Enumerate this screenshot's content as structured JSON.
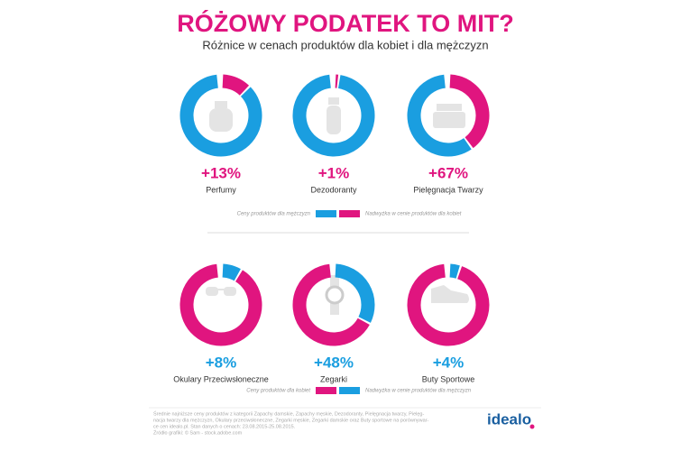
{
  "title": "RÓŻOWY PODATEK TO MIT?",
  "subtitle": "Różnice w cenach produktów dla kobiet i dla mężczyzn",
  "chart_data": [
    {
      "type": "donut",
      "category": "Perfumy",
      "values": [
        13
      ],
      "value_labels": [
        "+13%"
      ],
      "base_color": "#1a9ee0",
      "extra_color": "#e0157f"
    },
    {
      "type": "donut",
      "category": "Dezodoranty",
      "values": [
        1
      ],
      "value_labels": [
        "+1%"
      ],
      "base_color": "#1a9ee0",
      "extra_color": "#e0157f"
    },
    {
      "type": "donut",
      "category": "Pielęgnacja Twarzy",
      "values": [
        67
      ],
      "value_labels": [
        "+67%"
      ],
      "base_color": "#1a9ee0",
      "extra_color": "#e0157f"
    },
    {
      "type": "donut",
      "category": "Okulary Przeciwsłoneczne",
      "values": [
        8
      ],
      "value_labels": [
        "+8%"
      ],
      "base_color": "#e0157f",
      "extra_color": "#1a9ee0"
    },
    {
      "type": "donut",
      "category": "Zegarki",
      "values": [
        48
      ],
      "value_labels": [
        "+48%"
      ],
      "base_color": "#e0157f",
      "extra_color": "#1a9ee0"
    },
    {
      "type": "donut",
      "category": "Buty Sportowe",
      "values": [
        4
      ],
      "value_labels": [
        "+4%"
      ],
      "base_color": "#e0157f",
      "extra_color": "#1a9ee0"
    }
  ],
  "legends": [
    {
      "items": [
        {
          "name": "Ceny produktów dla mężczyzn",
          "color": "#1a9ee0"
        },
        {
          "name": "Nadwyżka w cenie produktów dla kobiet",
          "color": "#e0157f"
        }
      ]
    },
    {
      "items": [
        {
          "name": "Ceny produktów dla kobiet",
          "color": "#e0157f"
        },
        {
          "name": "Nadwyżka w cenie produktów dla mężczyzn",
          "color": "#1a9ee0"
        }
      ]
    }
  ],
  "footer": {
    "lines": [
      "Średnie najniższe ceny produktów z kategorii Zapachy damskie, Zapachy męskie, Dezodoranty, Pielęgnacja twarzy, Pielęg-",
      "nacja twarzy dla mężczyzn, Okulary przeciwsłoneczne, Zegarki męskie, Zegarki damskie oraz Buty sportowe na porównywar-",
      "ce cen idealo.pl. Stan danych o cenach: 23.08.2015-25.08.2015.",
      "Źródło grafiki: © Sam - stock.adobe.com"
    ],
    "logo": "idealo"
  }
}
